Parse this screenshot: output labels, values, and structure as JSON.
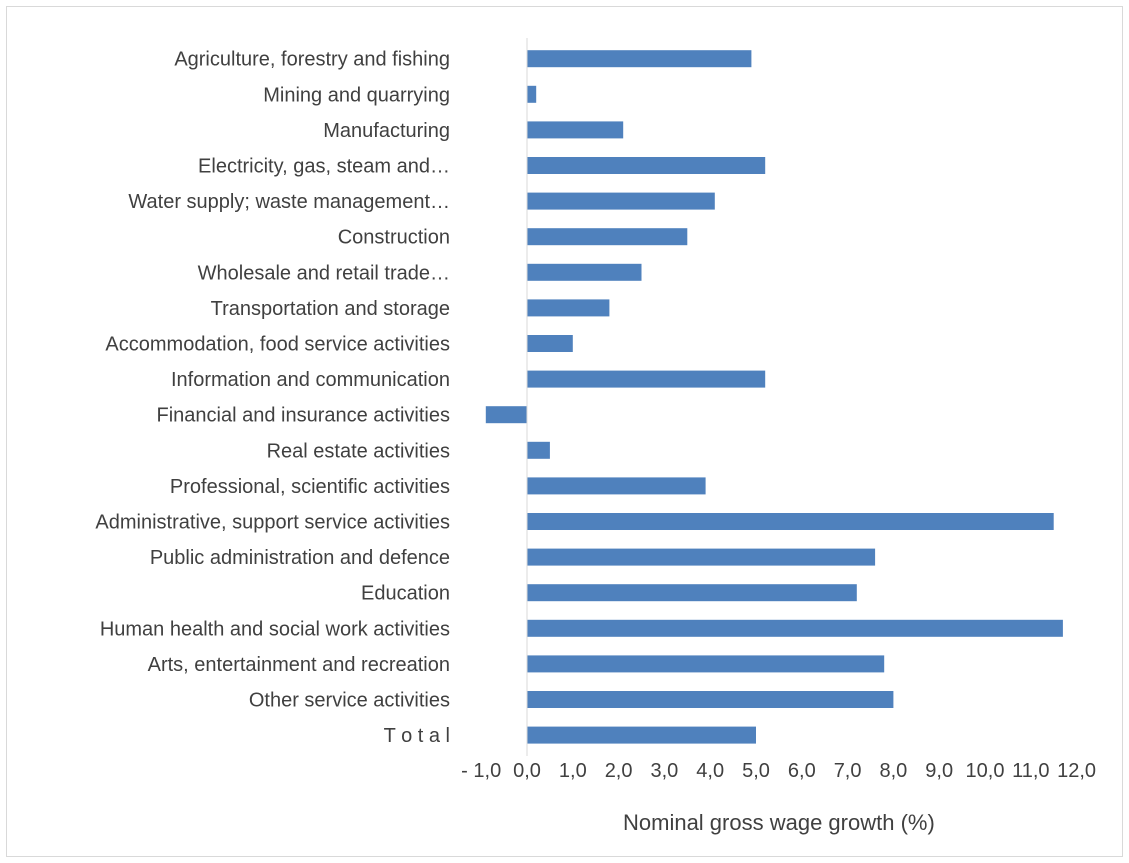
{
  "chart_data": {
    "type": "bar",
    "orientation": "horizontal",
    "categories": [
      "Agriculture, forestry and fishing",
      "Mining and quarrying",
      "Manufacturing",
      "Electricity, gas, steam and…",
      "Water supply; waste management…",
      "Construction",
      "Wholesale and retail trade…",
      "Transportation and storage",
      "Accommodation, food service activities",
      "Information and communication",
      "Financial and insurance activities",
      "Real estate activities",
      "Professional, scientific activities",
      "Administrative, support service activities",
      "Public administration and defence",
      "Education",
      "Human health and social work activities",
      "Arts, entertainment and recreation",
      "Other service activities",
      "T o t a l"
    ],
    "values": [
      4.9,
      0.2,
      2.1,
      5.2,
      4.1,
      3.5,
      2.5,
      1.8,
      1.0,
      5.2,
      -0.9,
      0.5,
      3.9,
      11.5,
      7.6,
      7.2,
      11.7,
      7.8,
      8.0,
      5.0
    ],
    "xlim": [
      -1.0,
      12.0
    ],
    "ticks": [
      -1,
      0,
      1,
      2,
      3,
      4,
      5,
      6,
      7,
      8,
      9,
      10,
      11,
      12
    ],
    "tick_labels": [
      "- 1,0",
      "0,0",
      "1,0",
      "2,0",
      "3,0",
      "4,0",
      "5,0",
      "6,0",
      "7,0",
      "8,0",
      "9,0",
      "10,0",
      "11,0",
      "12,0"
    ],
    "xlabel": "Nominal gross wage growth (%)",
    "ylabel": "",
    "title": "",
    "bar_color": "#4f81bd",
    "axis_color": "#d9d9d9",
    "grid": false
  }
}
